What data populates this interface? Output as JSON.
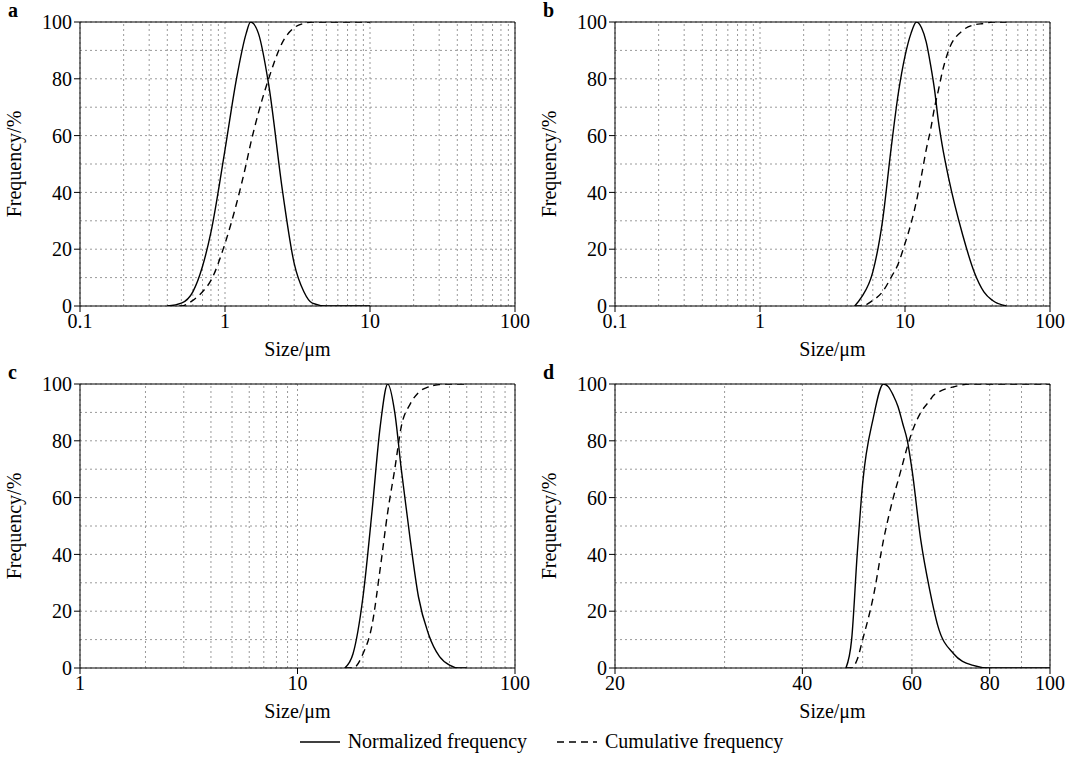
{
  "chart_data": [
    {
      "type": "line",
      "title": "a",
      "x_label": "Size/μm",
      "y_label": "Frequency/%",
      "log": "x",
      "grid": true,
      "legend": "bottom",
      "xlim": [
        0.1,
        100
      ],
      "xticks": [
        0.1,
        1,
        10,
        100
      ],
      "ylim": [
        0,
        100
      ],
      "yticks": [
        0,
        20,
        40,
        60,
        80,
        100
      ],
      "x": [
        0.4,
        0.5,
        0.6,
        0.7,
        0.8,
        1.0,
        1.2,
        1.4,
        1.5,
        1.7,
        2.0,
        2.5,
        3.0,
        3.5,
        4.0,
        5.0,
        6.0,
        8.0,
        10
      ],
      "series": [
        {
          "name": "Normalized frequency",
          "color": "#000000",
          "line_style": "solid",
          "values": [
            0,
            1,
            5,
            14,
            26,
            55,
            80,
            96,
            100,
            96,
            78,
            40,
            15,
            5,
            1,
            0,
            0,
            0,
            0
          ]
        },
        {
          "name": "Cumulative frequency",
          "color": "#000000",
          "line_style": "dashed",
          "values": [
            0,
            0,
            2,
            5,
            9,
            22,
            36,
            50,
            57,
            68,
            80,
            93,
            98,
            99.5,
            100,
            100,
            100,
            100,
            100
          ]
        }
      ]
    },
    {
      "type": "line",
      "title": "b",
      "x_label": "Size/μm",
      "y_label": "Frequency/%",
      "log": "x",
      "grid": true,
      "legend": "bottom",
      "xlim": [
        0.1,
        100
      ],
      "xticks": [
        0.1,
        1,
        10,
        100
      ],
      "ylim": [
        0,
        100
      ],
      "yticks": [
        0,
        20,
        40,
        60,
        80,
        100
      ],
      "x": [
        4.5,
        5,
        6,
        7,
        8,
        9,
        10,
        11,
        12,
        13,
        14,
        15,
        16,
        17,
        18,
        20,
        25,
        30,
        35,
        40,
        50
      ],
      "series": [
        {
          "name": "Normalized frequency",
          "color": "#000000",
          "line_style": "solid",
          "values": [
            0,
            3,
            12,
            30,
            55,
            75,
            88,
            96,
            100,
            98,
            93,
            85,
            76,
            65,
            57,
            45,
            25,
            12,
            5,
            2,
            0
          ]
        },
        {
          "name": "Cumulative frequency",
          "color": "#000000",
          "line_style": "dashed",
          "values": [
            0,
            0,
            2,
            5,
            10,
            15,
            22,
            29,
            37,
            46,
            55,
            62,
            70,
            76,
            82,
            90,
            97,
            99,
            99.5,
            100,
            100
          ]
        }
      ]
    },
    {
      "type": "line",
      "title": "c",
      "x_label": "Size/μm",
      "y_label": "Frequency/%",
      "log": "x",
      "grid": true,
      "legend": "bottom",
      "xlim": [
        1,
        100
      ],
      "xticks": [
        1,
        10,
        100
      ],
      "ylim": [
        0,
        100
      ],
      "yticks": [
        0,
        20,
        40,
        60,
        80,
        100
      ],
      "x": [
        16.5,
        18,
        20,
        22,
        24,
        26,
        28,
        30,
        33,
        36,
        40,
        45,
        50,
        55,
        60
      ],
      "series": [
        {
          "name": "Normalized frequency",
          "color": "#000000",
          "line_style": "solid",
          "values": [
            0,
            5,
            25,
            55,
            85,
            100,
            90,
            70,
            45,
            25,
            12,
            4,
            1,
            0,
            0
          ]
        },
        {
          "name": "Cumulative frequency",
          "color": "#000000",
          "line_style": "dashed",
          "values": [
            0,
            0,
            5,
            15,
            35,
            55,
            70,
            85,
            93,
            97,
            99,
            99.8,
            100,
            100,
            100
          ]
        }
      ]
    },
    {
      "type": "line",
      "title": "d",
      "x_label": "Size/μm",
      "y_label": "Frequency/%",
      "log": "x",
      "grid": true,
      "legend": "bottom",
      "xlim": [
        20,
        100
      ],
      "xticks": [
        20,
        40,
        60,
        80,
        100
      ],
      "ylim": [
        0,
        100
      ],
      "yticks": [
        0,
        20,
        40,
        60,
        80,
        100
      ],
      "x": [
        47,
        48,
        49,
        50,
        52,
        54,
        55,
        56,
        57,
        58,
        59,
        60,
        62,
        64,
        65,
        66,
        70,
        75,
        80,
        90,
        100
      ],
      "series": [
        {
          "name": "Normalized frequency",
          "color": "#000000",
          "line_style": "solid",
          "values": [
            0,
            10,
            40,
            65,
            88,
            100,
            99,
            96,
            92,
            86,
            80,
            70,
            45,
            28,
            21,
            15,
            5,
            1,
            0,
            0,
            0
          ]
        },
        {
          "name": "Cumulative frequency",
          "color": "#000000",
          "line_style": "dashed",
          "values": [
            0,
            0,
            3,
            10,
            25,
            45,
            53,
            60,
            66,
            72,
            78,
            83,
            90,
            94,
            96,
            97,
            99,
            100,
            100,
            100,
            100
          ]
        }
      ]
    }
  ]
}
